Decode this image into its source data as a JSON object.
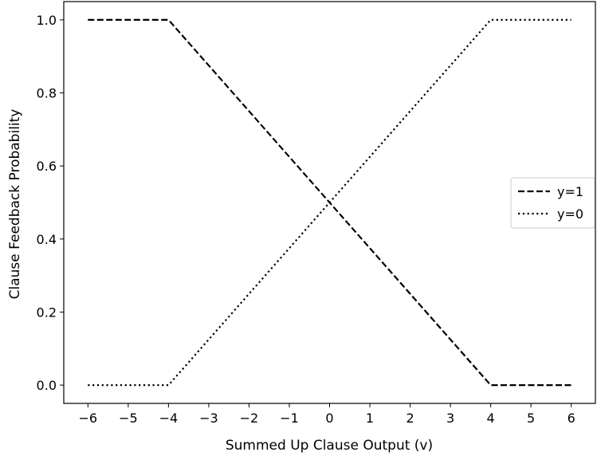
{
  "chart_data": {
    "type": "line",
    "xlabel": "Summed Up Clause Output (v)",
    "ylabel": "Clause Feedback Probability",
    "xlim": [
      -6.6,
      6.6
    ],
    "ylim": [
      -0.05,
      1.05
    ],
    "xticks": [
      -6,
      -5,
      -4,
      -3,
      -2,
      -1,
      0,
      1,
      2,
      3,
      4,
      5,
      6
    ],
    "xtick_labels": [
      "−6",
      "−5",
      "−4",
      "−3",
      "−2",
      "−1",
      "0",
      "1",
      "2",
      "3",
      "4",
      "5",
      "6"
    ],
    "yticks": [
      0.0,
      0.2,
      0.4,
      0.6,
      0.8,
      1.0
    ],
    "ytick_labels": [
      "0.0",
      "0.2",
      "0.4",
      "0.6",
      "0.8",
      "1.0"
    ],
    "grid": false,
    "legend_position": "center-right",
    "series": [
      {
        "name": "y=1",
        "style": "dashed",
        "color": "#000000",
        "x": [
          -6,
          -4,
          4,
          6
        ],
        "y": [
          1.0,
          1.0,
          0.0,
          0.0
        ]
      },
      {
        "name": "y=0",
        "style": "dotted",
        "color": "#000000",
        "x": [
          -6,
          -4,
          4,
          6
        ],
        "y": [
          0.0,
          0.0,
          1.0,
          1.0
        ]
      }
    ]
  }
}
